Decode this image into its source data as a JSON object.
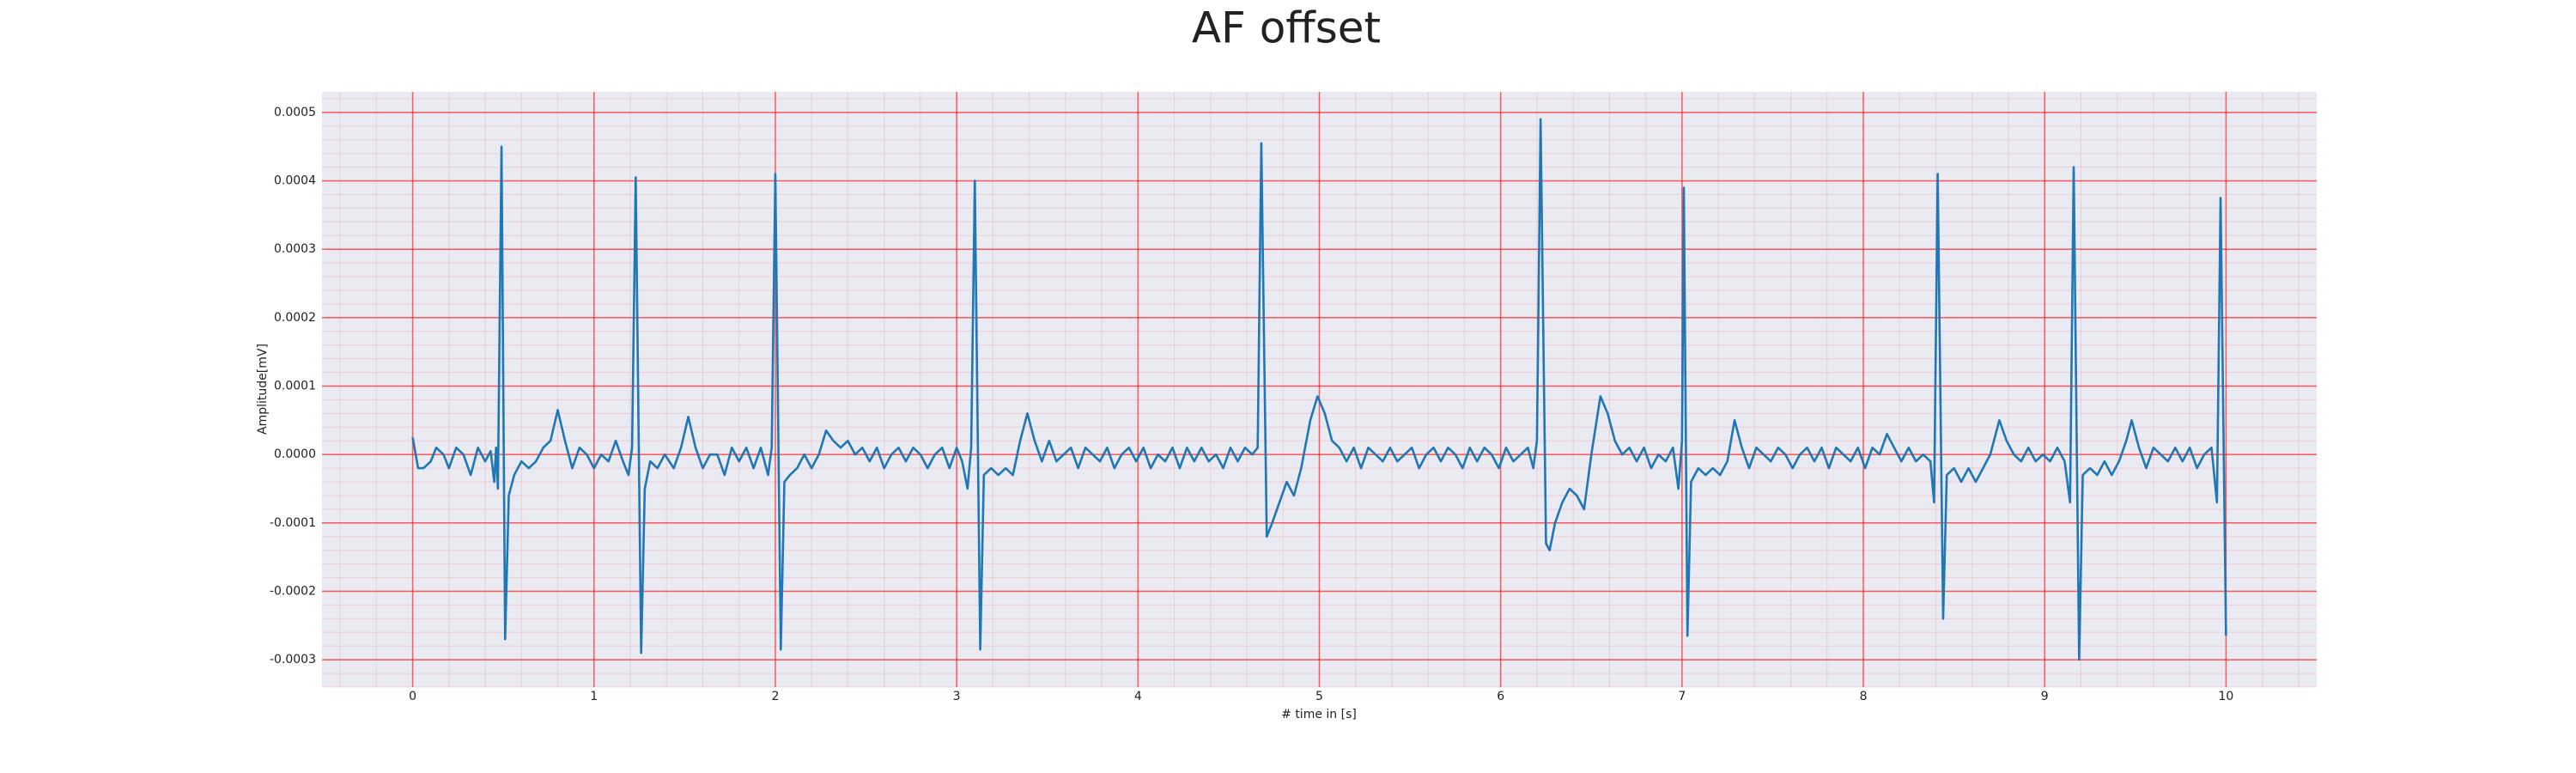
{
  "chart_data": {
    "type": "line",
    "title": "AF offset",
    "xlabel": "# time in [s]",
    "ylabel": "Amplitude[mV]",
    "x": [
      0,
      0.03,
      0.06,
      0.1,
      0.13,
      0.17,
      0.2,
      0.24,
      0.28,
      0.32,
      0.36,
      0.4,
      0.43,
      0.45,
      0.46,
      0.47,
      0.49,
      0.51,
      0.53,
      0.56,
      0.6,
      0.64,
      0.68,
      0.72,
      0.76,
      0.8,
      0.84,
      0.88,
      0.92,
      0.96,
      1.0,
      1.04,
      1.08,
      1.12,
      1.16,
      1.19,
      1.21,
      1.23,
      1.26,
      1.28,
      1.31,
      1.35,
      1.39,
      1.44,
      1.48,
      1.52,
      1.56,
      1.6,
      1.64,
      1.68,
      1.72,
      1.76,
      1.8,
      1.84,
      1.88,
      1.92,
      1.96,
      1.98,
      2.0,
      2.03,
      2.05,
      2.08,
      2.12,
      2.16,
      2.2,
      2.24,
      2.28,
      2.32,
      2.36,
      2.4,
      2.44,
      2.48,
      2.52,
      2.56,
      2.6,
      2.64,
      2.68,
      2.72,
      2.76,
      2.8,
      2.84,
      2.88,
      2.92,
      2.96,
      3.0,
      3.03,
      3.06,
      3.08,
      3.1,
      3.13,
      3.15,
      3.19,
      3.23,
      3.27,
      3.31,
      3.35,
      3.39,
      3.43,
      3.47,
      3.51,
      3.55,
      3.59,
      3.63,
      3.67,
      3.71,
      3.75,
      3.79,
      3.83,
      3.87,
      3.91,
      3.95,
      3.99,
      4.03,
      4.07,
      4.11,
      4.15,
      4.19,
      4.23,
      4.27,
      4.31,
      4.35,
      4.39,
      4.43,
      4.47,
      4.51,
      4.55,
      4.59,
      4.63,
      4.66,
      4.68,
      4.71,
      4.74,
      4.78,
      4.82,
      4.86,
      4.9,
      4.95,
      4.99,
      5.03,
      5.07,
      5.11,
      5.15,
      5.19,
      5.23,
      5.27,
      5.31,
      5.35,
      5.39,
      5.43,
      5.47,
      5.51,
      5.55,
      5.59,
      5.63,
      5.67,
      5.71,
      5.75,
      5.79,
      5.83,
      5.87,
      5.91,
      5.95,
      5.99,
      6.03,
      6.07,
      6.11,
      6.15,
      6.18,
      6.2,
      6.22,
      6.25,
      6.27,
      6.3,
      6.34,
      6.38,
      6.42,
      6.46,
      6.5,
      6.55,
      6.59,
      6.63,
      6.67,
      6.71,
      6.75,
      6.79,
      6.83,
      6.87,
      6.91,
      6.95,
      6.98,
      7.0,
      7.01,
      7.03,
      7.05,
      7.09,
      7.13,
      7.17,
      7.21,
      7.25,
      7.29,
      7.33,
      7.37,
      7.41,
      7.45,
      7.49,
      7.53,
      7.57,
      7.61,
      7.65,
      7.69,
      7.73,
      7.77,
      7.81,
      7.85,
      7.89,
      7.93,
      7.97,
      8.01,
      8.05,
      8.09,
      8.13,
      8.17,
      8.21,
      8.25,
      8.29,
      8.33,
      8.37,
      8.39,
      8.41,
      8.44,
      8.46,
      8.5,
      8.54,
      8.58,
      8.62,
      8.66,
      8.7,
      8.75,
      8.79,
      8.83,
      8.87,
      8.91,
      8.95,
      8.99,
      9.03,
      9.07,
      9.11,
      9.14,
      9.16,
      9.19,
      9.21,
      9.25,
      9.29,
      9.33,
      9.37,
      9.41,
      9.45,
      9.48,
      9.52,
      9.56,
      9.6,
      9.64,
      9.68,
      9.72,
      9.76,
      9.8,
      9.84,
      9.88,
      9.92,
      9.95,
      9.97,
      10.0
    ],
    "values": [
      2.5e-05,
      -2e-05,
      -2e-05,
      -1e-05,
      1e-05,
      0.0,
      -2e-05,
      1e-05,
      0.0,
      -3e-05,
      1e-05,
      -1e-05,
      5e-06,
      -4e-05,
      1e-05,
      -5e-05,
      0.00045,
      -0.00027,
      -6e-05,
      -3e-05,
      -1e-05,
      -2e-05,
      -1e-05,
      1e-05,
      2e-05,
      6.5e-05,
      2e-05,
      -2e-05,
      1e-05,
      0.0,
      -2e-05,
      0.0,
      -1e-05,
      2e-05,
      -1e-05,
      -3e-05,
      1e-05,
      0.000405,
      -0.00029,
      -5e-05,
      -1e-05,
      -2e-05,
      0.0,
      -2e-05,
      1e-05,
      5.5e-05,
      1e-05,
      -2e-05,
      0.0,
      0.0,
      -3e-05,
      1e-05,
      -1e-05,
      1e-05,
      -2e-05,
      1e-05,
      -3e-05,
      1e-05,
      0.00041,
      -0.000285,
      -4e-05,
      -3e-05,
      -2e-05,
      0.0,
      -2e-05,
      0.0,
      3.5e-05,
      2e-05,
      1e-05,
      2e-05,
      0.0,
      1e-05,
      -1e-05,
      1e-05,
      -2e-05,
      0.0,
      1e-05,
      -1e-05,
      1e-05,
      0.0,
      -2e-05,
      0.0,
      1e-05,
      -2e-05,
      1e-05,
      -1e-05,
      -5e-05,
      1e-05,
      0.0004,
      -0.000285,
      -3e-05,
      -2e-05,
      -3e-05,
      -2e-05,
      -3e-05,
      2e-05,
      6e-05,
      2e-05,
      -1e-05,
      2e-05,
      -1e-05,
      0.0,
      1e-05,
      -2e-05,
      1e-05,
      0.0,
      -1e-05,
      1e-05,
      -2e-05,
      0.0,
      1e-05,
      -1e-05,
      1e-05,
      -2e-05,
      0.0,
      -1e-05,
      1e-05,
      -2e-05,
      1e-05,
      -1e-05,
      1e-05,
      -1e-05,
      0.0,
      -2e-05,
      1e-05,
      -1e-05,
      1e-05,
      0.0,
      1e-05,
      0.000455,
      -0.00012,
      -0.0001,
      -7e-05,
      -4e-05,
      -6e-05,
      -2e-05,
      5e-05,
      8.5e-05,
      6e-05,
      2e-05,
      1e-05,
      -1e-05,
      1e-05,
      -2e-05,
      1e-05,
      0.0,
      -1e-05,
      1e-05,
      -1e-05,
      0.0,
      1e-05,
      -2e-05,
      0.0,
      1e-05,
      -1e-05,
      1e-05,
      0.0,
      -2e-05,
      1e-05,
      -1e-05,
      1e-05,
      0.0,
      -2e-05,
      1e-05,
      -1e-05,
      0.0,
      1e-05,
      -2e-05,
      2e-05,
      0.00049,
      -0.00013,
      -0.00014,
      -0.0001,
      -7e-05,
      -5e-05,
      -6e-05,
      -8e-05,
      0.0,
      8.5e-05,
      6e-05,
      2e-05,
      0.0,
      1e-05,
      -1e-05,
      1e-05,
      -2e-05,
      0.0,
      -1e-05,
      1e-05,
      -5e-05,
      2e-05,
      0.00039,
      -0.000265,
      -4e-05,
      -2e-05,
      -3e-05,
      -2e-05,
      -3e-05,
      -1e-05,
      5e-05,
      1e-05,
      -2e-05,
      1e-05,
      0.0,
      -1e-05,
      1e-05,
      0.0,
      -2e-05,
      0.0,
      1e-05,
      -1e-05,
      1e-05,
      -2e-05,
      1e-05,
      0.0,
      -1e-05,
      1e-05,
      -2e-05,
      1e-05,
      0.0,
      3e-05,
      1e-05,
      -1e-05,
      1e-05,
      -1e-05,
      0.0,
      -1e-05,
      -7e-05,
      0.00041,
      -0.00024,
      -3e-05,
      -2e-05,
      -4e-05,
      -2e-05,
      -4e-05,
      -2e-05,
      0.0,
      5e-05,
      2e-05,
      0.0,
      -1e-05,
      1e-05,
      -1e-05,
      0.0,
      -1e-05,
      1e-05,
      -1e-05,
      -7e-05,
      0.00042,
      -0.0003,
      -3e-05,
      -2e-05,
      -3e-05,
      -1e-05,
      -3e-05,
      -1e-05,
      2e-05,
      5e-05,
      1e-05,
      -2e-05,
      1e-05,
      0.0,
      -1e-05,
      1e-05,
      -1e-05,
      1e-05,
      -2e-05,
      0.0,
      1e-05,
      -7e-05,
      0.000375,
      -0.000265
    ],
    "color": "#1f77b4",
    "xlim": [
      -0.5,
      10.5
    ],
    "xticks": [
      0,
      1,
      2,
      3,
      4,
      5,
      6,
      7,
      8,
      9,
      10
    ],
    "ylim": [
      -0.00034,
      0.00053
    ],
    "yticks": [
      -0.0003,
      -0.0002,
      -0.0001,
      {
        "value": 0,
        "label": "0.0000"
      },
      0.0001,
      0.0002,
      0.0003,
      0.0004,
      0.0005
    ],
    "grid": true,
    "minor_grid": true,
    "grid_color": "#ff0000",
    "background": "#eaeaf2"
  }
}
